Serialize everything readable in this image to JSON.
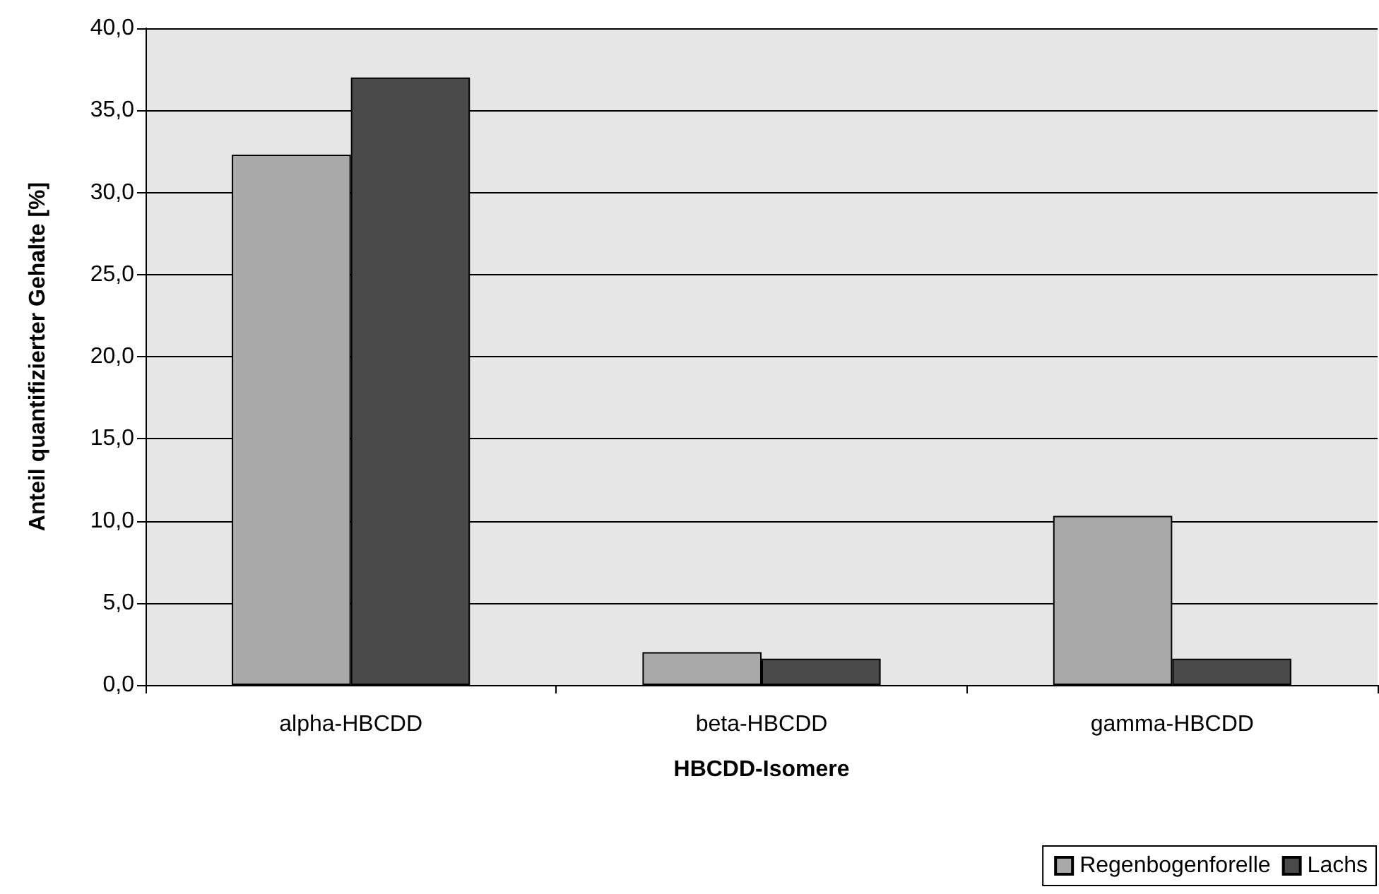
{
  "chart_data": {
    "type": "bar",
    "xlabel": "HBCDD-Isomere",
    "ylabel": "Anteil quantifizierter Gehalte [%]",
    "categories": [
      "alpha-HBCDD",
      "beta-HBCDD",
      "gamma-HBCDD"
    ],
    "series": [
      {
        "name": "Regenbogenforelle",
        "color": "#a9a9a9",
        "values": [
          32.3,
          2.0,
          10.3
        ]
      },
      {
        "name": "Lachs",
        "color": "#4a4a4a",
        "values": [
          37.0,
          1.6,
          1.6
        ]
      }
    ],
    "ylim": [
      0,
      40
    ],
    "yticks": [
      {
        "value": 0,
        "label": "0,0"
      },
      {
        "value": 5,
        "label": "5,0"
      },
      {
        "value": 10,
        "label": "10,0"
      },
      {
        "value": 15,
        "label": "15,0"
      },
      {
        "value": 20,
        "label": "20,0"
      },
      {
        "value": 25,
        "label": "25,0"
      },
      {
        "value": 30,
        "label": "30,0"
      },
      {
        "value": 35,
        "label": "35,0"
      },
      {
        "value": 40,
        "label": "40,0"
      }
    ],
    "grid": "y",
    "legend": "bottom right"
  }
}
